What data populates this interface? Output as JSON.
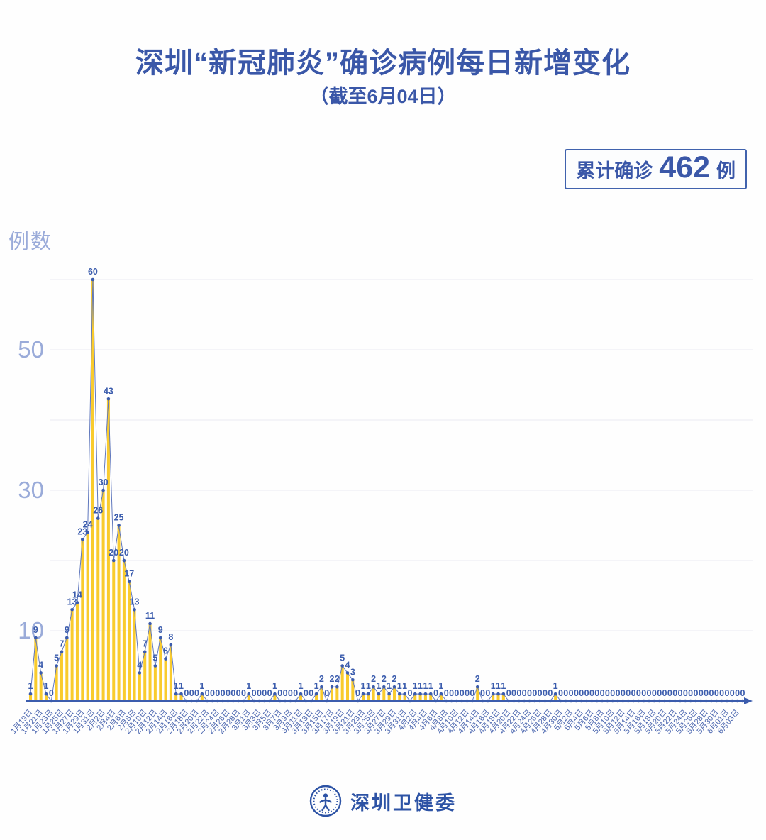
{
  "header": {
    "title": "深圳“新冠肺炎”确诊病例每日新增变化",
    "subtitle": "（截至6月04日）",
    "badge": {
      "prefix": "累计确诊",
      "value": "462",
      "suffix": "例"
    }
  },
  "footer": {
    "brand": "深圳卫健委"
  },
  "chart_data": {
    "type": "bar",
    "overlay": "line+markers",
    "title": "深圳“新冠肺炎”确诊病例每日新增变化",
    "subtitle": "（截至6月04日）",
    "xlabel": "",
    "ylabel": "例数",
    "ylim": [
      0,
      62
    ],
    "gridlines": [
      10,
      20,
      30,
      40,
      50,
      60
    ],
    "ytick_labels": [
      {
        "v": 10,
        "t": "10"
      },
      {
        "v": 30,
        "t": "30"
      },
      {
        "v": 50,
        "t": "50"
      }
    ],
    "x_label_every": 2,
    "legend": "none",
    "cumulative_total": 462,
    "colors": {
      "bar": "#f9cb2d",
      "line": "#6078bd",
      "accent": "#3b5cad",
      "date": "#4d68b0",
      "grid": "#ebebf1",
      "axis_muted": "#9aabd9",
      "title": "#3a57a8",
      "brand": "#2d53a5"
    },
    "categories": [
      "1月19日",
      "1月20日",
      "1月21日",
      "1月22日",
      "1月23日",
      "1月24日",
      "1月25日",
      "1月26日",
      "1月27日",
      "1月28日",
      "1月29日",
      "1月30日",
      "1月31日",
      "2月1日",
      "2月2日",
      "2月3日",
      "2月4日",
      "2月5日",
      "2月6日",
      "2月7日",
      "2月8日",
      "2月9日",
      "2月10日",
      "2月11日",
      "2月12日",
      "2月13日",
      "2月14日",
      "2月15日",
      "2月16日",
      "2月17日",
      "2月18日",
      "2月19日",
      "2月20日",
      "2月21日",
      "2月22日",
      "2月23日",
      "2月24日",
      "2月25日",
      "2月26日",
      "2月27日",
      "2月28日",
      "2月29日",
      "3月1日",
      "3月2日",
      "3月3日",
      "3月4日",
      "3月5日",
      "3月6日",
      "3月7日",
      "3月8日",
      "3月9日",
      "3月10日",
      "3月11日",
      "3月12日",
      "3月13日",
      "3月14日",
      "3月15日",
      "3月16日",
      "3月17日",
      "3月18日",
      "3月19日",
      "3月20日",
      "3月21日",
      "3月22日",
      "3月23日",
      "3月24日",
      "3月25日",
      "3月26日",
      "3月27日",
      "3月28日",
      "3月29日",
      "3月30日",
      "3月31日",
      "4月1日",
      "4月2日",
      "4月3日",
      "4月4日",
      "4月5日",
      "4月6日",
      "4月7日",
      "4月8日",
      "4月9日",
      "4月10日",
      "4月11日",
      "4月12日",
      "4月13日",
      "4月14日",
      "4月15日",
      "4月16日",
      "4月17日",
      "4月18日",
      "4月19日",
      "4月20日",
      "4月21日",
      "4月22日",
      "4月23日",
      "4月24日",
      "4月25日",
      "4月26日",
      "4月27日",
      "4月28日",
      "4月29日",
      "4月30日",
      "5月1日",
      "5月2日",
      "5月3日",
      "5月4日",
      "5月5日",
      "5月6日",
      "5月7日",
      "5月8日",
      "5月9日",
      "5月10日",
      "5月11日",
      "5月12日",
      "5月13日",
      "5月14日",
      "5月15日",
      "5月16日",
      "5月17日",
      "5月18日",
      "5月19日",
      "5月20日",
      "5月21日",
      "5月22日",
      "5月23日",
      "5月24日",
      "5月25日",
      "5月26日",
      "5月27日",
      "5月28日",
      "5月29日",
      "5月30日",
      "5月31日",
      "6月01日",
      "6月02日",
      "6月03日",
      "6月04日"
    ],
    "values": [
      1,
      9,
      4,
      1,
      0,
      5,
      7,
      9,
      13,
      14,
      23,
      24,
      60,
      26,
      30,
      43,
      20,
      25,
      20,
      17,
      13,
      4,
      7,
      11,
      5,
      9,
      6,
      8,
      1,
      1,
      0,
      0,
      0,
      1,
      0,
      0,
      0,
      0,
      0,
      0,
      0,
      0,
      1,
      0,
      0,
      0,
      0,
      1,
      0,
      0,
      0,
      0,
      1,
      0,
      0,
      1,
      2,
      0,
      2,
      2,
      5,
      4,
      3,
      0,
      1,
      1,
      2,
      1,
      2,
      1,
      2,
      1,
      1,
      0,
      1,
      1,
      1,
      1,
      0,
      1,
      0,
      0,
      0,
      0,
      0,
      0,
      2,
      0,
      0,
      1,
      1,
      1,
      0,
      0,
      0,
      0,
      0,
      0,
      0,
      0,
      0,
      1,
      0,
      0,
      0,
      0,
      0,
      0,
      0,
      0,
      0,
      0,
      0,
      0,
      0,
      0,
      0,
      0,
      0,
      0,
      0,
      0,
      0,
      0,
      0,
      0,
      0,
      0,
      0,
      0,
      0,
      0,
      0,
      0,
      0,
      0,
      0,
      0
    ]
  }
}
